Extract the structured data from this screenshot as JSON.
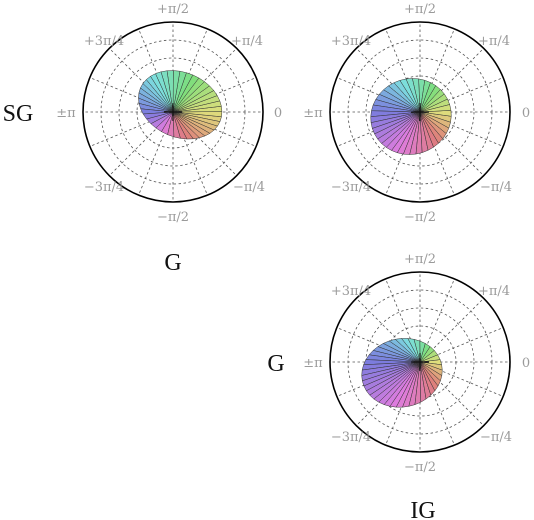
{
  "labels": {
    "row_left": "SG",
    "col_top": "G",
    "row_left_bottom": "G",
    "col_bottom": "IG"
  },
  "angle_ticks": {
    "top": "+π/2",
    "top_left": "+3π/4",
    "top_right": "+π/4",
    "left": "±π",
    "right": "0",
    "bottom_left": "−3π/4",
    "bottom_right": "−π/4",
    "bottom": "−π/2"
  },
  "rings": 5,
  "spokes": 16,
  "plots": [
    {
      "id": "top-left",
      "blob_offset": [
        0.08,
        0.08
      ],
      "blob_radii": [
        0.48,
        0.36
      ],
      "blob_tilt": -0.4
    },
    {
      "id": "top-right",
      "blob_offset": [
        -0.1,
        -0.05
      ],
      "blob_radii": [
        0.45,
        0.42
      ],
      "blob_tilt": 0.3
    },
    {
      "id": "bottom-right",
      "blob_offset": [
        -0.2,
        -0.12
      ],
      "blob_radii": [
        0.45,
        0.38
      ],
      "blob_tilt": 0.2
    }
  ]
}
